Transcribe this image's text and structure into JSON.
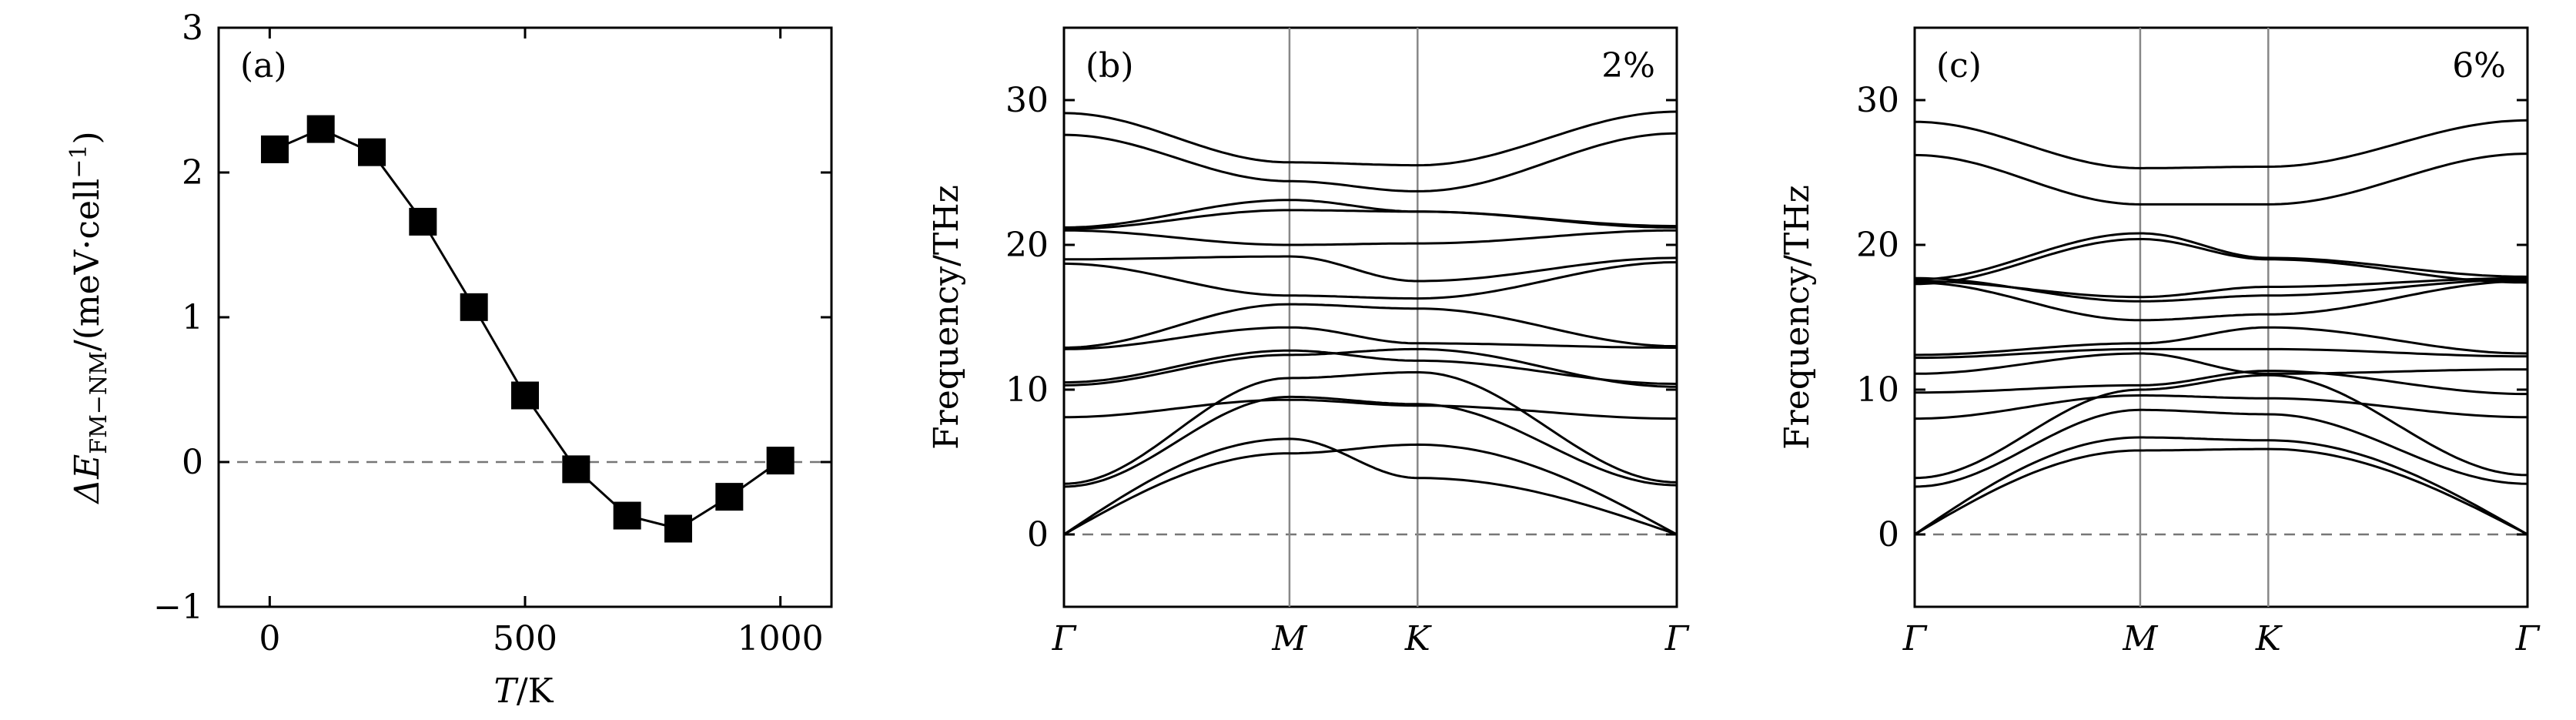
{
  "chart_data": [
    {
      "panel": "(a)",
      "type": "line",
      "xlabel_var": "T",
      "xlabel_unit": "/K",
      "ylabel_prefix": "ΔE",
      "ylabel_sub": "FM−NM",
      "ylabel_unit": "/(meV·cell",
      "ylabel_exp": "−1",
      "ylabel_close": ")",
      "xlim": [
        -100,
        1100
      ],
      "ylim": [
        -1,
        3
      ],
      "xticks": [
        0,
        500,
        1000
      ],
      "yticks": [
        -1,
        0,
        1,
        2,
        3
      ],
      "reference_line": 0,
      "series": [
        {
          "marker": "square",
          "x": [
            10,
            100,
            200,
            300,
            400,
            500,
            600,
            700,
            800,
            900,
            1000
          ],
          "y": [
            2.16,
            2.3,
            2.14,
            1.66,
            1.07,
            0.46,
            -0.05,
            -0.37,
            -0.46,
            -0.24,
            0.01
          ]
        }
      ]
    },
    {
      "panel": "(b)",
      "annotation": "2%",
      "type": "line",
      "ylabel": "Frequency/THz",
      "ylim": [
        -5,
        35
      ],
      "yticks": [
        0,
        10,
        20,
        30
      ],
      "path": [
        "Γ",
        "M",
        "K",
        "Γ"
      ],
      "path_positions": [
        0,
        0.368,
        0.577,
        1
      ],
      "reference_line": 0,
      "series": [
        {
          "y_path": [
            0,
            6.6,
            3.9,
            0
          ]
        },
        {
          "y_path": [
            0,
            5.6,
            6.2,
            0
          ]
        },
        {
          "y_path": [
            3.3,
            9.5,
            9.0,
            3.4
          ]
        },
        {
          "y_path": [
            3.5,
            10.8,
            11.2,
            3.6
          ]
        },
        {
          "y_path": [
            8.1,
            9.3,
            8.9,
            8.0
          ]
        },
        {
          "y_path": [
            10.3,
            12.4,
            12.8,
            10.2
          ]
        },
        {
          "y_path": [
            10.5,
            12.7,
            12.0,
            10.4
          ]
        },
        {
          "y_path": [
            12.8,
            14.3,
            13.2,
            12.9
          ]
        },
        {
          "y_path": [
            12.9,
            15.9,
            15.6,
            13.0
          ]
        },
        {
          "y_path": [
            18.7,
            16.5,
            16.3,
            18.8
          ]
        },
        {
          "y_path": [
            19.0,
            19.2,
            17.5,
            19.1
          ]
        },
        {
          "y_path": [
            21.0,
            20.0,
            20.1,
            21.0
          ]
        },
        {
          "y_path": [
            21.1,
            22.4,
            22.3,
            21.2
          ]
        },
        {
          "y_path": [
            21.2,
            23.1,
            22.3,
            21.3
          ]
        },
        {
          "y_path": [
            27.6,
            24.4,
            23.7,
            27.7
          ]
        },
        {
          "y_path": [
            29.1,
            25.7,
            25.5,
            29.2
          ]
        }
      ]
    },
    {
      "panel": "(c)",
      "annotation": "6%",
      "type": "line",
      "ylabel": "Frequency/THz",
      "ylim": [
        -5,
        35
      ],
      "yticks": [
        0,
        10,
        20,
        30
      ],
      "path": [
        "Γ",
        "M",
        "K",
        "Γ"
      ],
      "path_positions": [
        0,
        0.368,
        0.577,
        1
      ],
      "reference_line": 0,
      "series": [
        {
          "y_path": [
            0,
            5.8,
            5.9,
            0
          ]
        },
        {
          "y_path": [
            0,
            6.7,
            6.5,
            0
          ]
        },
        {
          "y_path": [
            3.3,
            8.6,
            8.3,
            3.5
          ]
        },
        {
          "y_path": [
            3.9,
            10.0,
            11.0,
            4.1
          ]
        },
        {
          "y_path": [
            8.0,
            9.6,
            9.4,
            8.1
          ]
        },
        {
          "y_path": [
            9.8,
            10.3,
            11.3,
            9.7
          ]
        },
        {
          "y_path": [
            11.1,
            12.5,
            11.1,
            11.4
          ]
        },
        {
          "y_path": [
            12.2,
            12.8,
            12.8,
            12.3
          ]
        },
        {
          "y_path": [
            12.4,
            13.2,
            14.3,
            12.5
          ]
        },
        {
          "y_path": [
            17.4,
            14.8,
            15.2,
            17.5
          ]
        },
        {
          "y_path": [
            17.7,
            16.1,
            16.5,
            17.6
          ]
        },
        {
          "y_path": [
            17.5,
            16.4,
            17.1,
            17.7
          ]
        },
        {
          "y_path": [
            17.3,
            20.4,
            19.0,
            17.4
          ]
        },
        {
          "y_path": [
            17.6,
            20.8,
            19.1,
            17.8
          ]
        },
        {
          "y_path": [
            26.2,
            22.8,
            22.8,
            26.3
          ]
        },
        {
          "y_path": [
            28.5,
            25.3,
            25.4,
            28.6
          ]
        }
      ]
    }
  ]
}
